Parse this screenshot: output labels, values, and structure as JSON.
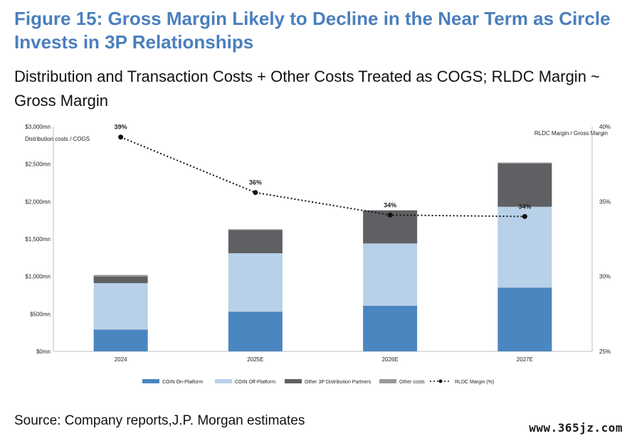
{
  "title": "Figure 15: Gross Margin Likely to Decline in the Near Term as Circle Invests in 3P Relationships",
  "subtitle": "Distribution and Transaction Costs + Other Costs Treated as COGS; RLDC Margin ~ Gross Margin",
  "source": "Source: Company reports,J.P. Morgan estimates",
  "watermark": "www.365jz.com",
  "chart_data": {
    "type": "bar",
    "stacked": true,
    "categories": [
      "2024",
      "2025E",
      "2026E",
      "2027E"
    ],
    "series": [
      {
        "name": "COIN On-Platform",
        "color": "#4a86bf",
        "values": [
          290,
          530,
          610,
          850
        ]
      },
      {
        "name": "COIN Off-Platform",
        "color": "#b8d0e8",
        "values": [
          620,
          780,
          830,
          1080
        ]
      },
      {
        "name": "Other 3P Distribution Partners",
        "color": "#5f6063",
        "values": [
          90,
          310,
          440,
          580
        ]
      },
      {
        "name": "Other costs",
        "color": "#9a9a9a",
        "values": [
          20,
          10,
          5,
          10
        ]
      }
    ],
    "line_series": {
      "name": "RLDC Margin (%)",
      "color": "#111111",
      "values": [
        39.3,
        35.6,
        34.1,
        34.0
      ],
      "labels": [
        "39%",
        "36%",
        "34%",
        "34%"
      ]
    },
    "ylabel_left": "Distribution costs / COGS",
    "ylabel_right": "RLDC Margin / Gross Margin",
    "ylim_left": [
      0,
      3000
    ],
    "ylim_right": [
      25,
      40
    ],
    "yticks_left": [
      "$0mn",
      "$500mn",
      "$1,000mn",
      "$1,500mn",
      "$2,000mn",
      "$2,500mn",
      "$3,000mn"
    ],
    "yticks_right": [
      "25%",
      "30%",
      "35%",
      "40%"
    ],
    "grid": false,
    "legend_position": "bottom"
  }
}
